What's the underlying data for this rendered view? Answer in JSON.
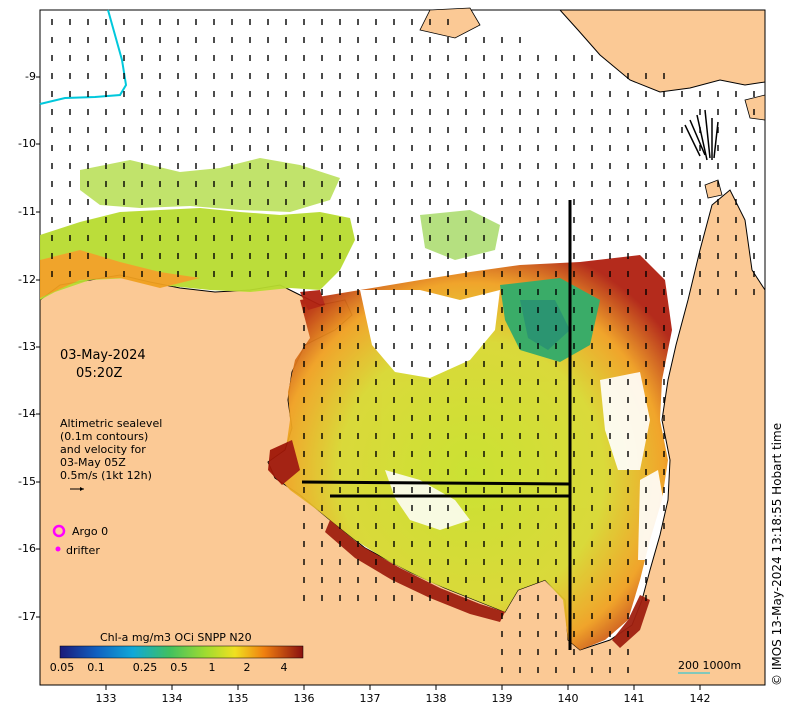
{
  "map": {
    "title_date": "03-May-2024",
    "title_time": "05:20Z",
    "colors": {
      "land": "#fbc995",
      "water": "#ffffff",
      "coast": "#000000",
      "cyan_track": "#00c8dc",
      "argo": "#ff00ff",
      "chl_low": "#2a2a9a",
      "chl_mid": "#5cd040",
      "chl_high": "#9a1a10"
    },
    "legend_lines": [
      "Altimetric sealevel",
      "(0.1m contours)",
      "and velocity for",
      "03-May 05Z",
      "0.5m/s (1kt 12h)"
    ],
    "argo_label": "Argo 0",
    "drifter_label": "drifter",
    "colorbar": {
      "title": "Chl-a mg/m3 OCi SNPP N20",
      "ticks": [
        "0.05",
        "0.1",
        "0.25",
        "0.5",
        "1",
        "2",
        "4"
      ]
    },
    "scale_label": "200  1000m",
    "copyright": "© IMOS 13-May-2024 13:18:55 Hobart time",
    "lon_ticks": [
      "133",
      "134",
      "135",
      "136",
      "137",
      "138",
      "139",
      "140",
      "141",
      "142"
    ],
    "lat_ticks": [
      "-9",
      "-10",
      "-11",
      "-12",
      "-13",
      "-14",
      "-15",
      "-16",
      "-17"
    ]
  }
}
